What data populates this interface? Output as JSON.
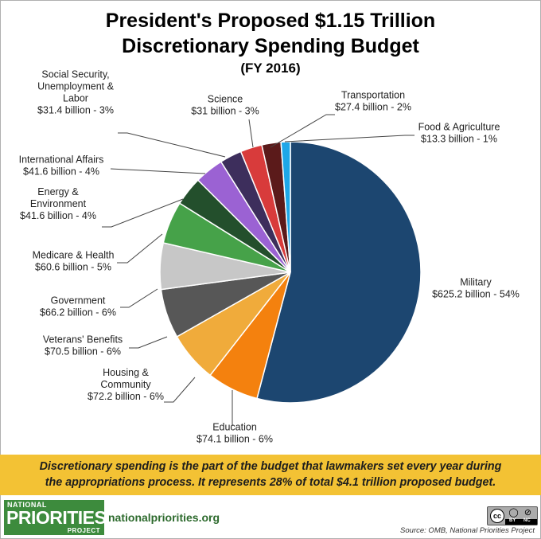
{
  "chart_data": {
    "type": "pie",
    "title": "President's Proposed $1.15 Trillion",
    "title_line2": "Discretionary Spending Budget",
    "subtitle": "(FY 2016)",
    "slices": [
      {
        "key": "military",
        "label_lines": [
          "Military",
          "$625.2 billion - 54%"
        ],
        "value": 625.2,
        "percent": 54,
        "color": "#1c4670"
      },
      {
        "key": "education",
        "label_lines": [
          "Education",
          "$74.1 billion - 6%"
        ],
        "value": 74.1,
        "percent": 6,
        "color": "#f4810e"
      },
      {
        "key": "housing",
        "label_lines": [
          "Housing &",
          "Community",
          "$72.2 billion - 6%"
        ],
        "value": 72.2,
        "percent": 6,
        "color": "#f0ab3b"
      },
      {
        "key": "veterans",
        "label_lines": [
          "Veterans' Benefits",
          "$70.5 billion - 6%"
        ],
        "value": 70.5,
        "percent": 6,
        "color": "#575757"
      },
      {
        "key": "government",
        "label_lines": [
          "Government",
          "$66.2 billion - 6%"
        ],
        "value": 66.2,
        "percent": 6,
        "color": "#c7c7c7"
      },
      {
        "key": "medicare",
        "label_lines": [
          "Medicare & Health",
          "$60.6 billion - 5%"
        ],
        "value": 60.6,
        "percent": 5,
        "color": "#46a249"
      },
      {
        "key": "energy",
        "label_lines": [
          "Energy &",
          "Environment",
          "$41.6 billion - 4%"
        ],
        "value": 41.6,
        "percent": 4,
        "color": "#234f2c"
      },
      {
        "key": "international",
        "label_lines": [
          "International Affairs",
          "$41.6 billion - 4%"
        ],
        "value": 41.6,
        "percent": 4,
        "color": "#9b62d3"
      },
      {
        "key": "social",
        "label_lines": [
          "Social Security,",
          "Unemployment &",
          "Labor",
          "$31.4 billion - 3%"
        ],
        "value": 31.4,
        "percent": 3,
        "color": "#3d2e5c"
      },
      {
        "key": "science",
        "label_lines": [
          "Science",
          "$31 billion - 3%"
        ],
        "value": 31,
        "percent": 3,
        "color": "#d83b3b"
      },
      {
        "key": "transportation",
        "label_lines": [
          "Transportation",
          "$27.4 billion - 2%"
        ],
        "value": 27.4,
        "percent": 2,
        "color": "#5b1a1a"
      },
      {
        "key": "food",
        "label_lines": [
          "Food & Agriculture",
          "$13.3 billion - 1%"
        ],
        "value": 13.3,
        "percent": 1,
        "color": "#1ea7e8"
      }
    ],
    "start": "12 o'clock",
    "direction": "clockwise"
  },
  "banner": {
    "line1": "Discretionary spending is the part of the budget that lawmakers set every year during",
    "line2": "the appropriations process. It represents 28% of total $4.1 trillion proposed budget."
  },
  "footer": {
    "logo_top": "NATIONAL",
    "logo_main": "PRIORITIES",
    "logo_bottom": "PROJECT",
    "url": "nationalpriorities.org",
    "cc_mark": "cc",
    "cc_by": "BY",
    "cc_nc": "NC",
    "source": "Source: OMB, National Priorities Project"
  }
}
